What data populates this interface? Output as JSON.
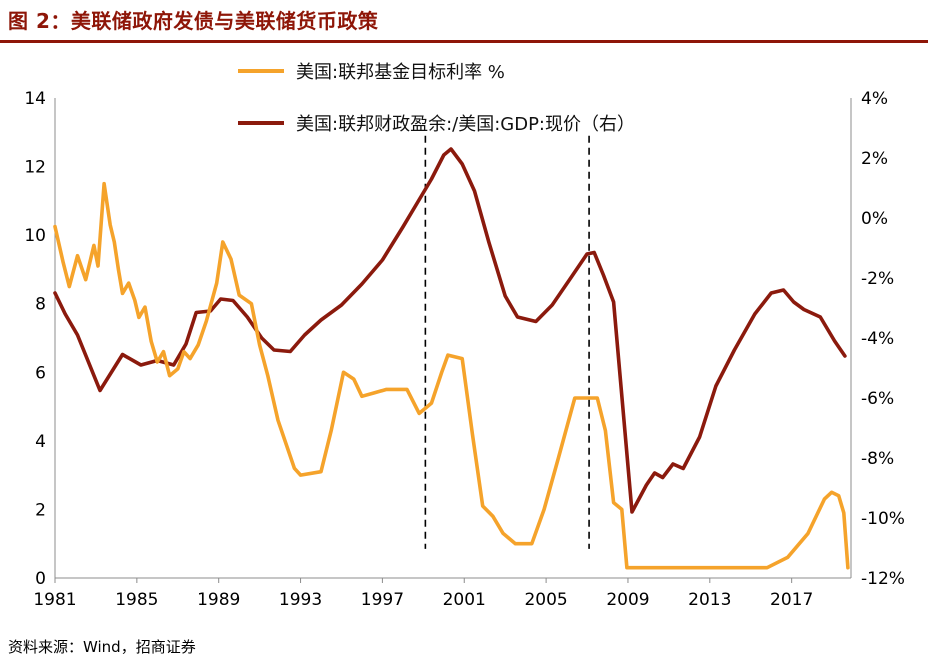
{
  "title": "图 2：美联储政府发债与美联储货币政策",
  "source": "资料来源：Wind，招商证券",
  "colors": {
    "title_accent": "#8e1608",
    "series_orange": "#f5a32b",
    "series_maroon": "#8b1a0d",
    "dashed_line": "#000000",
    "axis_line": "#8c8c8c",
    "axis_text": "#000000"
  },
  "legend": [
    {
      "label": "美国:联邦基金目标利率 %",
      "color": "#f5a32b"
    },
    {
      "label": "美国:联邦财政盈余:/美国:GDP:现价（右）",
      "color": "#8b1a0d"
    }
  ],
  "chart_data": {
    "type": "line",
    "title": "图 2：美联储政府发债与美联储货币政策",
    "xlabel": "",
    "ylabel_left": "",
    "ylabel_right": "",
    "x_axis": {
      "min": 1981,
      "max": 2019.9,
      "ticks": [
        1981,
        1985,
        1989,
        1993,
        1997,
        2001,
        2005,
        2009,
        2013,
        2017
      ]
    },
    "y_left": {
      "min": 0,
      "max": 14,
      "ticks": [
        0,
        2,
        4,
        6,
        8,
        10,
        12,
        14
      ]
    },
    "y_right": {
      "min": -12,
      "max": 4,
      "ticks": [
        -12,
        -10,
        -8,
        -6,
        -4,
        -2,
        0,
        2,
        4
      ],
      "suffix": "%"
    },
    "dashed_vertical_lines": [
      1999.1,
      2007.1
    ],
    "grid": false,
    "legend_position": "top-center",
    "series": [
      {
        "key": "fiscal-surplus-to-gdp",
        "name": "美国:联邦财政盈余:/美国:GDP:现价（右）",
        "axis": "right",
        "color": "#8b1a0d",
        "points": [
          [
            1981.0,
            -2.5
          ],
          [
            1981.5,
            -3.2
          ],
          [
            1982.1,
            -3.9
          ],
          [
            1983.2,
            -5.75
          ],
          [
            1984.3,
            -4.55
          ],
          [
            1985.2,
            -4.9
          ],
          [
            1986.0,
            -4.75
          ],
          [
            1986.8,
            -4.9
          ],
          [
            1987.4,
            -4.2
          ],
          [
            1987.9,
            -3.15
          ],
          [
            1988.6,
            -3.1
          ],
          [
            1989.1,
            -2.7
          ],
          [
            1989.7,
            -2.75
          ],
          [
            1990.4,
            -3.3
          ],
          [
            1991.1,
            -4.0
          ],
          [
            1991.7,
            -4.4
          ],
          [
            1992.5,
            -4.45
          ],
          [
            1993.2,
            -3.9
          ],
          [
            1994.0,
            -3.4
          ],
          [
            1995.0,
            -2.9
          ],
          [
            1996.0,
            -2.2
          ],
          [
            1997.0,
            -1.4
          ],
          [
            1998.0,
            -0.3
          ],
          [
            1998.7,
            0.5
          ],
          [
            1999.4,
            1.3
          ],
          [
            2000.0,
            2.1
          ],
          [
            2000.35,
            2.3
          ],
          [
            2000.9,
            1.8
          ],
          [
            2001.5,
            0.9
          ],
          [
            2002.2,
            -0.8
          ],
          [
            2003.0,
            -2.6
          ],
          [
            2003.6,
            -3.3
          ],
          [
            2004.5,
            -3.45
          ],
          [
            2005.3,
            -2.9
          ],
          [
            2006.2,
            -2.0
          ],
          [
            2007.0,
            -1.2
          ],
          [
            2007.35,
            -1.15
          ],
          [
            2007.8,
            -1.9
          ],
          [
            2008.3,
            -2.8
          ],
          [
            2009.2,
            -9.8
          ],
          [
            2009.9,
            -8.9
          ],
          [
            2010.3,
            -8.5
          ],
          [
            2010.7,
            -8.65
          ],
          [
            2011.2,
            -8.2
          ],
          [
            2011.7,
            -8.35
          ],
          [
            2012.5,
            -7.3
          ],
          [
            2013.3,
            -5.6
          ],
          [
            2014.2,
            -4.4
          ],
          [
            2015.2,
            -3.2
          ],
          [
            2016.0,
            -2.5
          ],
          [
            2016.6,
            -2.4
          ],
          [
            2017.1,
            -2.8
          ],
          [
            2017.6,
            -3.05
          ],
          [
            2018.4,
            -3.3
          ],
          [
            2019.1,
            -4.1
          ],
          [
            2019.6,
            -4.6
          ]
        ]
      },
      {
        "key": "fed-funds-target-rate",
        "name": "美国:联邦基金目标利率 %",
        "axis": "left",
        "color": "#f5a32b",
        "points": [
          [
            1981.0,
            10.25
          ],
          [
            1981.4,
            9.2
          ],
          [
            1981.7,
            8.5
          ],
          [
            1982.1,
            9.4
          ],
          [
            1982.5,
            8.7
          ],
          [
            1982.9,
            9.7
          ],
          [
            1983.1,
            9.1
          ],
          [
            1983.4,
            11.5
          ],
          [
            1983.7,
            10.3
          ],
          [
            1983.9,
            9.8
          ],
          [
            1984.1,
            9.0
          ],
          [
            1984.3,
            8.3
          ],
          [
            1984.6,
            8.6
          ],
          [
            1984.9,
            8.1
          ],
          [
            1985.1,
            7.6
          ],
          [
            1985.4,
            7.9
          ],
          [
            1985.7,
            6.9
          ],
          [
            1986.0,
            6.3
          ],
          [
            1986.3,
            6.6
          ],
          [
            1986.6,
            5.9
          ],
          [
            1987.0,
            6.1
          ],
          [
            1987.3,
            6.6
          ],
          [
            1987.6,
            6.4
          ],
          [
            1988.0,
            6.8
          ],
          [
            1988.4,
            7.5
          ],
          [
            1988.9,
            8.6
          ],
          [
            1989.2,
            9.8
          ],
          [
            1989.6,
            9.3
          ],
          [
            1990.0,
            8.25
          ],
          [
            1990.6,
            8.0
          ],
          [
            1991.0,
            6.8
          ],
          [
            1991.4,
            5.9
          ],
          [
            1991.9,
            4.6
          ],
          [
            1992.3,
            3.9
          ],
          [
            1992.7,
            3.2
          ],
          [
            1993.0,
            3.0
          ],
          [
            1994.0,
            3.1
          ],
          [
            1994.5,
            4.3
          ],
          [
            1995.1,
            6.0
          ],
          [
            1995.6,
            5.8
          ],
          [
            1996.0,
            5.3
          ],
          [
            1996.6,
            5.4
          ],
          [
            1997.2,
            5.5
          ],
          [
            1998.2,
            5.5
          ],
          [
            1998.8,
            4.8
          ],
          [
            1999.4,
            5.1
          ],
          [
            1999.9,
            6.0
          ],
          [
            2000.2,
            6.5
          ],
          [
            2000.9,
            6.4
          ],
          [
            2001.4,
            4.2
          ],
          [
            2001.9,
            2.1
          ],
          [
            2002.4,
            1.8
          ],
          [
            2002.9,
            1.3
          ],
          [
            2003.5,
            1.0
          ],
          [
            2004.3,
            1.0
          ],
          [
            2004.9,
            2.0
          ],
          [
            2005.6,
            3.5
          ],
          [
            2006.4,
            5.25
          ],
          [
            2007.5,
            5.25
          ],
          [
            2007.9,
            4.3
          ],
          [
            2008.3,
            2.2
          ],
          [
            2008.7,
            2.0
          ],
          [
            2008.95,
            0.3
          ],
          [
            2015.8,
            0.3
          ],
          [
            2016.8,
            0.6
          ],
          [
            2017.8,
            1.3
          ],
          [
            2018.6,
            2.3
          ],
          [
            2018.95,
            2.5
          ],
          [
            2019.3,
            2.4
          ],
          [
            2019.55,
            1.9
          ],
          [
            2019.75,
            0.3
          ]
        ]
      }
    ]
  }
}
